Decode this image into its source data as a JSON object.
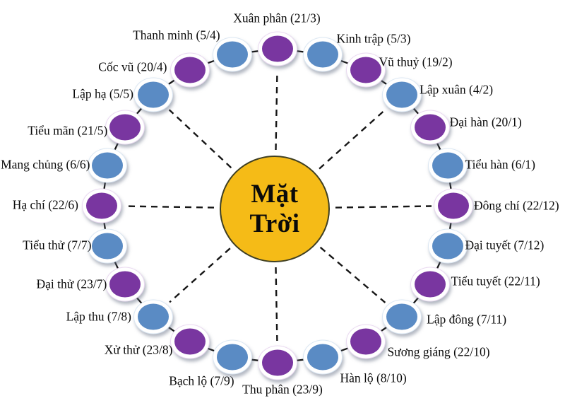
{
  "sun": {
    "line1": "Mặt",
    "line2": "Trời"
  },
  "colors": {
    "purple": "#7936A0",
    "blue": "#5A8BC4",
    "sun_fill": "#F5BB17",
    "sun_border": "#3f3f22",
    "line": "#161616",
    "label_text": "#0a0a0a"
  },
  "nodes": [
    {
      "label": "Xuân phân (21/3)",
      "name": "Xuân phân",
      "date": "21/3",
      "color": "purple",
      "principal": true
    },
    {
      "label": "Kinh trập (5/3)",
      "name": "Kinh trập",
      "date": "5/3",
      "color": "blue",
      "principal": false
    },
    {
      "label": "Vũ thuỷ (19/2)",
      "name": "Vũ thuỷ",
      "date": "19/2",
      "color": "purple",
      "principal": false
    },
    {
      "label": "Lập xuân (4/2)",
      "name": "Lập xuân",
      "date": "4/2",
      "color": "blue",
      "principal": true
    },
    {
      "label": "Đại hàn (20/1)",
      "name": "Đại hàn",
      "date": "20/1",
      "color": "purple",
      "principal": false
    },
    {
      "label": "Tiểu hàn (6/1)",
      "name": "Tiểu hàn",
      "date": "6/1",
      "color": "blue",
      "principal": false
    },
    {
      "label": "Đông chí (22/12)",
      "name": "Đông chí",
      "date": "22/12",
      "color": "purple",
      "principal": true
    },
    {
      "label": "Đại tuyết (7/12)",
      "name": "Đại tuyết",
      "date": "7/12",
      "color": "blue",
      "principal": false
    },
    {
      "label": "Tiểu tuyết (22/11)",
      "name": "Tiểu tuyết",
      "date": "22/11",
      "color": "purple",
      "principal": false
    },
    {
      "label": "Lập đông (7/11)",
      "name": "Lập đông",
      "date": "7/11",
      "color": "blue",
      "principal": true
    },
    {
      "label": "Sương giáng (22/10)",
      "name": "Sương giáng",
      "date": "22/10",
      "color": "purple",
      "principal": false
    },
    {
      "label": "Hàn lộ (8/10)",
      "name": "Hàn lộ",
      "date": "8/10",
      "color": "blue",
      "principal": false
    },
    {
      "label": "Thu phân (23/9)",
      "name": "Thu phân",
      "date": "23/9",
      "color": "purple",
      "principal": true
    },
    {
      "label": "Bạch lộ (7/9)",
      "name": "Bạch lộ",
      "date": "7/9",
      "color": "blue",
      "principal": false
    },
    {
      "label": "Xử thử (23/8)",
      "name": "Xử thử",
      "date": "23/8",
      "color": "purple",
      "principal": false
    },
    {
      "label": "Lập thu (7/8)",
      "name": "Lập thu",
      "date": "7/8",
      "color": "blue",
      "principal": true
    },
    {
      "label": "Đại thử (23/7)",
      "name": "Đại thử",
      "date": "23/7",
      "color": "purple",
      "principal": false
    },
    {
      "label": "Tiểu thử (7/7)",
      "name": "Tiểu thử",
      "date": "7/7",
      "color": "blue",
      "principal": false
    },
    {
      "label": "Hạ chí (22/6)",
      "name": "Hạ chí",
      "date": "22/6",
      "color": "purple",
      "principal": true
    },
    {
      "label": "Mang chủng (6/6)",
      "name": "Mang chủng",
      "date": "6/6",
      "color": "blue",
      "principal": false
    },
    {
      "label": "Tiểu mãn (21/5)",
      "name": "Tiểu mãn",
      "date": "21/5",
      "color": "purple",
      "principal": false
    },
    {
      "label": "Lập hạ (5/5)",
      "name": "Lập hạ",
      "date": "5/5",
      "color": "blue",
      "principal": true
    },
    {
      "label": "Cốc vũ (20/4)",
      "name": "Cốc vũ",
      "date": "20/4",
      "color": "purple",
      "principal": false
    },
    {
      "label": "Thanh minh (5/4)",
      "name": "Thanh minh",
      "date": "5/4",
      "color": "blue",
      "principal": false
    }
  ]
}
